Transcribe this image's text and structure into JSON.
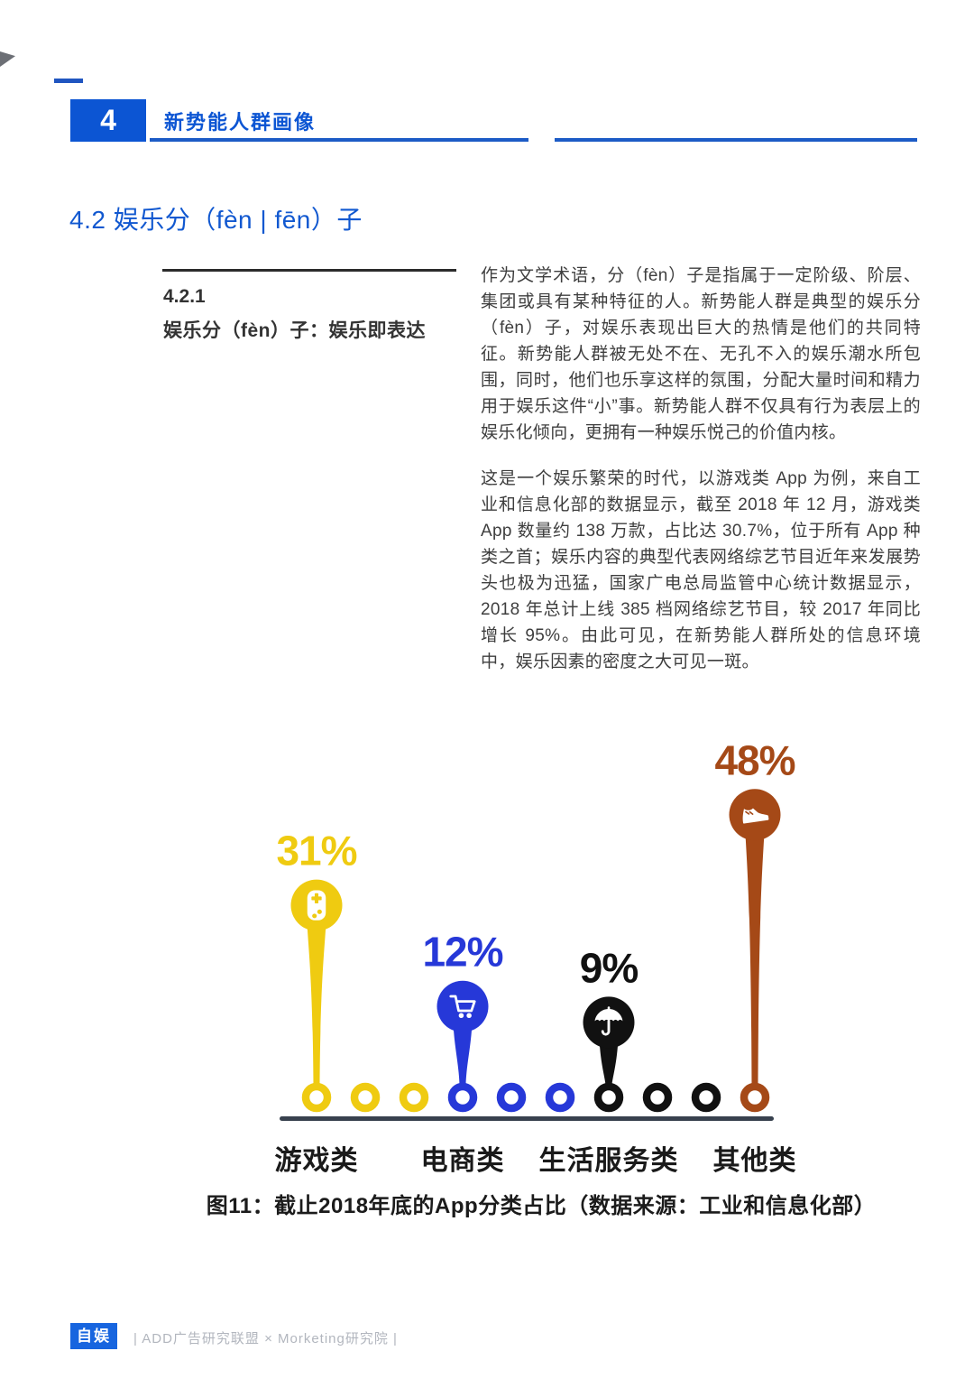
{
  "page": {
    "header": {
      "chapter_number": "4",
      "chapter_title": "新势能人群画像"
    },
    "section_title": "4.2 娱乐分（fèn | fēn）子",
    "subsection": {
      "number": "4.2.1",
      "title": "娱乐分（fèn）子：娱乐即表达"
    },
    "body": {
      "paragraph1": "作为文学术语，分（fèn）子是指属于一定阶级、阶层、集团或具有某种特征的人。新势能人群是典型的娱乐分（fèn）子，对娱乐表现出巨大的热情是他们的共同特征。新势能人群被无处不在、无孔不入的娱乐潮水所包围，同时，他们也乐享这样的氛围，分配大量时间和精力用于娱乐这件“小”事。新势能人群不仅具有行为表层上的娱乐化倾向，更拥有一种娱乐悦己的价值内核。",
      "paragraph2": "这是一个娱乐繁荣的时代，以游戏类 App 为例，来自工业和信息化部的数据显示，截至 2018 年 12 月，游戏类 App 数量约 138 万款，占比达 30.7%，位于所有 App 种类之首；娱乐内容的典型代表网络综艺节目近年来发展势头也极为迅猛，国家广电总局监管中心统计数据显示，2018 年总计上线 385 档网络综艺节目，较 2017 年同比增长 95%。由此可见，在新势能人群所处的信息环境中，娱乐因素的密度之大可见一斑。"
    },
    "figure_caption": "图11：截止2018年底的App分类占比（数据来源：工业和信息化部）",
    "footer": {
      "logo": "自娱",
      "credit": "| ADD广告研究联盟 × Morketing研究院 |"
    },
    "accent_color": "#0c55d3"
  },
  "chart_data": {
    "type": "bar",
    "style": "pictographic-lollipop",
    "categories": [
      "游戏类",
      "电商类",
      "生活服务类",
      "其他类"
    ],
    "values": [
      31,
      12,
      9,
      48
    ],
    "value_labels": [
      "31%",
      "12%",
      "9%",
      "48%"
    ],
    "colors": [
      "#efcb11",
      "#2638d8",
      "#111111",
      "#a54917"
    ],
    "icons": [
      "gamepad-icon",
      "cart-icon",
      "umbrella-icon",
      "shoe-icon"
    ],
    "title": "图11：截止2018年底的App分类占比（数据来源：工业和信息化部）",
    "xlabel": "",
    "ylabel": "",
    "ylim": [
      0,
      50
    ],
    "grid": false,
    "legend": "none",
    "baseline_dot_count": 10,
    "pin_dot_indices": [
      0,
      3,
      6,
      9
    ],
    "axis_color": "#38414e"
  }
}
